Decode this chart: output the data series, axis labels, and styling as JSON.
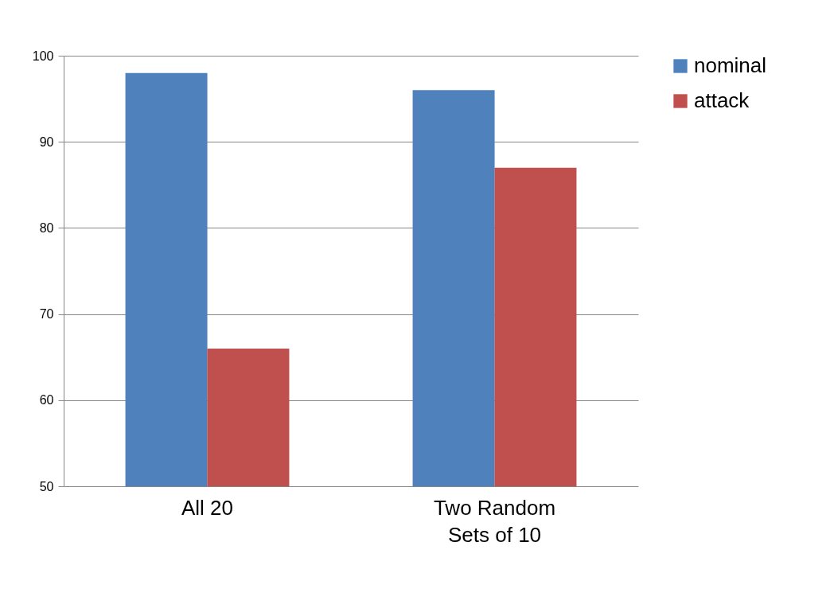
{
  "chart_data": {
    "type": "bar",
    "categories": [
      "All 20",
      "Two Random Sets of 10"
    ],
    "series": [
      {
        "name": "nominal",
        "color": "#4f81bd",
        "values": [
          98,
          96
        ]
      },
      {
        "name": "attack",
        "color": "#c0504d",
        "values": [
          66,
          87
        ]
      }
    ],
    "ylim": [
      50,
      100
    ],
    "yticks": [
      50,
      60,
      70,
      80,
      90,
      100
    ],
    "grid": "y",
    "legend": "right"
  }
}
